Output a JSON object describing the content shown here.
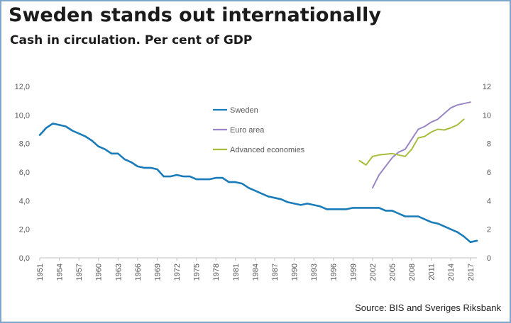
{
  "header": {
    "title": "Sweden stands out internationally",
    "subtitle": "Cash in circulation. Per cent of GDP"
  },
  "footer": {
    "source": "Source: BIS and Sveriges Riksbank"
  },
  "colors": {
    "sweden": "#1a7bb9",
    "euro_area": "#9a86c4",
    "advanced_economies": "#a9bd3c",
    "axis_text": "#595959",
    "axis_line": "#bfbfbf",
    "frame": "#7fa7cc"
  },
  "chart_data": {
    "type": "line",
    "title": "Sweden stands out internationally",
    "subtitle": "Cash in circulation. Per cent of GDP",
    "xlim": [
      1951,
      2018
    ],
    "ylim_left": [
      0,
      12
    ],
    "ylim_right": [
      0,
      12
    ],
    "x_ticks": [
      1951,
      1954,
      1957,
      1960,
      1963,
      1966,
      1969,
      1972,
      1975,
      1978,
      1981,
      1984,
      1987,
      1990,
      1993,
      1996,
      1999,
      2002,
      2005,
      2008,
      2011,
      2014,
      2017
    ],
    "y_ticks_left": [
      "0,0",
      "2,0",
      "4,0",
      "6,0",
      "8,0",
      "10,0",
      "12,0"
    ],
    "y_ticks_right": [
      "0",
      "2",
      "4",
      "6",
      "8",
      "10",
      "12"
    ],
    "legend_position": "center-top",
    "grid": false,
    "series": [
      {
        "name": "Sweden",
        "color_key": "sweden",
        "x": [
          1951,
          1952,
          1953,
          1954,
          1955,
          1956,
          1957,
          1958,
          1959,
          1960,
          1961,
          1962,
          1963,
          1964,
          1965,
          1966,
          1967,
          1968,
          1969,
          1970,
          1971,
          1972,
          1973,
          1974,
          1975,
          1976,
          1977,
          1978,
          1979,
          1980,
          1981,
          1982,
          1983,
          1984,
          1985,
          1986,
          1987,
          1988,
          1989,
          1990,
          1991,
          1992,
          1993,
          1994,
          1995,
          1996,
          1997,
          1998,
          1999,
          2000,
          2001,
          2002,
          2003,
          2004,
          2005,
          2006,
          2007,
          2008,
          2009,
          2010,
          2011,
          2012,
          2013,
          2014,
          2015,
          2016,
          2017,
          2018
        ],
        "values": [
          8.6,
          9.1,
          9.4,
          9.3,
          9.2,
          8.9,
          8.7,
          8.5,
          8.2,
          7.8,
          7.6,
          7.3,
          7.3,
          6.9,
          6.7,
          6.4,
          6.3,
          6.3,
          6.2,
          5.7,
          5.7,
          5.8,
          5.7,
          5.7,
          5.5,
          5.5,
          5.5,
          5.6,
          5.6,
          5.3,
          5.3,
          5.2,
          4.9,
          4.7,
          4.5,
          4.3,
          4.2,
          4.1,
          3.9,
          3.8,
          3.7,
          3.8,
          3.7,
          3.6,
          3.4,
          3.4,
          3.4,
          3.4,
          3.5,
          3.5,
          3.5,
          3.5,
          3.5,
          3.3,
          3.3,
          3.1,
          2.9,
          2.9,
          2.9,
          2.7,
          2.5,
          2.4,
          2.2,
          2.0,
          1.8,
          1.5,
          1.1,
          1.2
        ]
      },
      {
        "name": "Euro area",
        "color_key": "euro_area",
        "x": [
          2002,
          2003,
          2004,
          2005,
          2006,
          2007,
          2008,
          2009,
          2010,
          2011,
          2012,
          2013,
          2014,
          2015,
          2016,
          2017
        ],
        "values": [
          4.9,
          5.8,
          6.4,
          7.0,
          7.4,
          7.6,
          8.3,
          9.0,
          9.2,
          9.5,
          9.7,
          10.1,
          10.5,
          10.7,
          10.8,
          10.9
        ]
      },
      {
        "name": "Advanced economies",
        "color_key": "advanced_economies",
        "x": [
          2000,
          2001,
          2002,
          2003,
          2004,
          2005,
          2006,
          2007,
          2008,
          2009,
          2010,
          2011,
          2012,
          2013,
          2014,
          2015,
          2016
        ],
        "values": [
          6.8,
          6.5,
          7.1,
          7.2,
          7.25,
          7.3,
          7.2,
          7.1,
          7.6,
          8.4,
          8.5,
          8.8,
          9.0,
          8.95,
          9.1,
          9.3,
          9.7
        ]
      }
    ]
  }
}
